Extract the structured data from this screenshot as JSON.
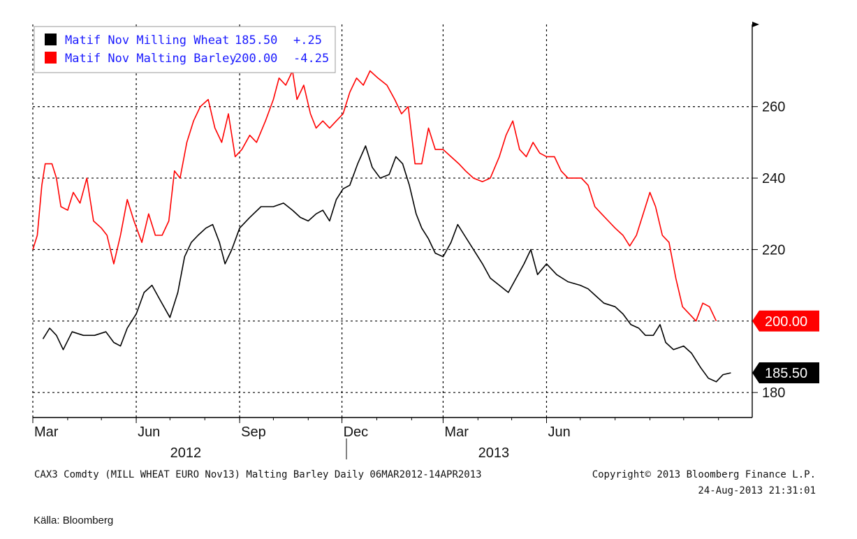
{
  "chart_data": {
    "type": "line",
    "ylim": [
      173,
      283
    ],
    "y_ticks": [
      180,
      200,
      220,
      240,
      260
    ],
    "grid": true,
    "legend": "top-left",
    "x_ticks": [
      {
        "label": "Mar",
        "date": "2012-03-01"
      },
      {
        "label": "Jun",
        "date": "2012-06-01"
      },
      {
        "label": "Sep",
        "date": "2012-09-01"
      },
      {
        "label": "Dec",
        "date": "2012-12-01"
      },
      {
        "label": "Mar",
        "date": "2013-03-01"
      },
      {
        "label": "Jun",
        "date": "2013-06-01"
      }
    ],
    "years": [
      {
        "label": "2012",
        "date": "2012-07-15"
      },
      {
        "label": "2013",
        "date": "2013-04-15"
      }
    ],
    "series": [
      {
        "name": "Matif Nov Milling Wheat",
        "last": "185.50",
        "change": "+.25",
        "color": "#000000",
        "points": [
          [
            "2012-03-10",
            195
          ],
          [
            "2012-03-16",
            198
          ],
          [
            "2012-03-22",
            196
          ],
          [
            "2012-03-28",
            192
          ],
          [
            "2012-04-05",
            197
          ],
          [
            "2012-04-15",
            196
          ],
          [
            "2012-04-25",
            196
          ],
          [
            "2012-05-05",
            197
          ],
          [
            "2012-05-12",
            194
          ],
          [
            "2012-05-18",
            193
          ],
          [
            "2012-05-24",
            198
          ],
          [
            "2012-06-01",
            202
          ],
          [
            "2012-06-08",
            208
          ],
          [
            "2012-06-15",
            210
          ],
          [
            "2012-06-22",
            206
          ],
          [
            "2012-07-01",
            201
          ],
          [
            "2012-07-08",
            208
          ],
          [
            "2012-07-14",
            218
          ],
          [
            "2012-07-20",
            222
          ],
          [
            "2012-07-26",
            224
          ],
          [
            "2012-08-02",
            226
          ],
          [
            "2012-08-08",
            227
          ],
          [
            "2012-08-14",
            222
          ],
          [
            "2012-08-19",
            216
          ],
          [
            "2012-08-25",
            220
          ],
          [
            "2012-09-01",
            226
          ],
          [
            "2012-09-10",
            229
          ],
          [
            "2012-09-20",
            232
          ],
          [
            "2012-10-01",
            232
          ],
          [
            "2012-10-10",
            233
          ],
          [
            "2012-10-18",
            231
          ],
          [
            "2012-10-25",
            229
          ],
          [
            "2012-11-01",
            228
          ],
          [
            "2012-11-08",
            230
          ],
          [
            "2012-11-14",
            231
          ],
          [
            "2012-11-20",
            228
          ],
          [
            "2012-11-26",
            234
          ],
          [
            "2012-12-02",
            237
          ],
          [
            "2012-12-08",
            238
          ],
          [
            "2012-12-15",
            244
          ],
          [
            "2012-12-22",
            249
          ],
          [
            "2012-12-28",
            243
          ],
          [
            "2013-01-04",
            240
          ],
          [
            "2013-01-12",
            241
          ],
          [
            "2013-01-18",
            246
          ],
          [
            "2013-01-24",
            244
          ],
          [
            "2013-01-30",
            238
          ],
          [
            "2013-02-05",
            230
          ],
          [
            "2013-02-10",
            226
          ],
          [
            "2013-02-16",
            223
          ],
          [
            "2013-02-22",
            219
          ],
          [
            "2013-03-01",
            218
          ],
          [
            "2013-03-08",
            222
          ],
          [
            "2013-03-14",
            227
          ],
          [
            "2013-03-20",
            224
          ],
          [
            "2013-03-28",
            220
          ],
          [
            "2013-04-05",
            216
          ],
          [
            "2013-04-12",
            212
          ],
          [
            "2013-04-20",
            210
          ],
          [
            "2013-04-28",
            208
          ],
          [
            "2013-05-05",
            212
          ],
          [
            "2013-05-12",
            216
          ],
          [
            "2013-05-18",
            220
          ],
          [
            "2013-05-24",
            213
          ],
          [
            "2013-06-01",
            216
          ],
          [
            "2013-06-10",
            213
          ],
          [
            "2013-06-20",
            211
          ],
          [
            "2013-07-01",
            210
          ],
          [
            "2013-07-08",
            209
          ],
          [
            "2013-07-15",
            207
          ],
          [
            "2013-07-22",
            205
          ],
          [
            "2013-08-01",
            204
          ],
          [
            "2013-08-08",
            202
          ],
          [
            "2013-08-15",
            199
          ],
          [
            "2013-08-22",
            198
          ],
          [
            "2013-08-28",
            196
          ],
          [
            "2013-09-04",
            196
          ],
          [
            "2013-09-10",
            199
          ],
          [
            "2013-09-15",
            194
          ],
          [
            "2013-09-22",
            192
          ],
          [
            "2013-10-01",
            193
          ],
          [
            "2013-10-08",
            191
          ],
          [
            "2013-10-16",
            187
          ],
          [
            "2013-10-23",
            184
          ],
          [
            "2013-10-30",
            183
          ],
          [
            "2013-11-05",
            185
          ],
          [
            "2013-11-12",
            185.5
          ]
        ]
      },
      {
        "name": "Matif Nov Malting Barley",
        "last": "200.00",
        "change": "-4.25",
        "color": "#ff0000",
        "points": [
          [
            "2012-03-01",
            220
          ],
          [
            "2012-03-05",
            224
          ],
          [
            "2012-03-09",
            238
          ],
          [
            "2012-03-12",
            244
          ],
          [
            "2012-03-18",
            244
          ],
          [
            "2012-03-22",
            240
          ],
          [
            "2012-03-26",
            232
          ],
          [
            "2012-04-01",
            231
          ],
          [
            "2012-04-06",
            236
          ],
          [
            "2012-04-12",
            233
          ],
          [
            "2012-04-18",
            240
          ],
          [
            "2012-04-24",
            228
          ],
          [
            "2012-05-01",
            226
          ],
          [
            "2012-05-06",
            224
          ],
          [
            "2012-05-12",
            216
          ],
          [
            "2012-05-18",
            224
          ],
          [
            "2012-05-24",
            234
          ],
          [
            "2012-05-30",
            228
          ],
          [
            "2012-06-06",
            222
          ],
          [
            "2012-06-12",
            230
          ],
          [
            "2012-06-18",
            224
          ],
          [
            "2012-06-24",
            224
          ],
          [
            "2012-06-30",
            228
          ],
          [
            "2012-07-05",
            242
          ],
          [
            "2012-07-10",
            240
          ],
          [
            "2012-07-16",
            250
          ],
          [
            "2012-07-22",
            256
          ],
          [
            "2012-07-28",
            260
          ],
          [
            "2012-08-04",
            262
          ],
          [
            "2012-08-10",
            254
          ],
          [
            "2012-08-16",
            250
          ],
          [
            "2012-08-22",
            258
          ],
          [
            "2012-08-28",
            246
          ],
          [
            "2012-09-03",
            248
          ],
          [
            "2012-09-10",
            252
          ],
          [
            "2012-09-16",
            250
          ],
          [
            "2012-09-24",
            256
          ],
          [
            "2012-10-01",
            262
          ],
          [
            "2012-10-06",
            268
          ],
          [
            "2012-10-12",
            266
          ],
          [
            "2012-10-18",
            270
          ],
          [
            "2012-10-22",
            262
          ],
          [
            "2012-10-28",
            266
          ],
          [
            "2012-11-03",
            258
          ],
          [
            "2012-11-08",
            254
          ],
          [
            "2012-11-14",
            256
          ],
          [
            "2012-11-20",
            254
          ],
          [
            "2012-11-26",
            256
          ],
          [
            "2012-12-02",
            258
          ],
          [
            "2012-12-08",
            264
          ],
          [
            "2012-12-14",
            268
          ],
          [
            "2012-12-20",
            266
          ],
          [
            "2012-12-26",
            270
          ],
          [
            "2013-01-02",
            268
          ],
          [
            "2013-01-10",
            266
          ],
          [
            "2013-01-17",
            262
          ],
          [
            "2013-01-23",
            258
          ],
          [
            "2013-01-29",
            260
          ],
          [
            "2013-02-04",
            244
          ],
          [
            "2013-02-10",
            244
          ],
          [
            "2013-02-16",
            254
          ],
          [
            "2013-02-22",
            248
          ],
          [
            "2013-03-01",
            248
          ],
          [
            "2013-03-08",
            246
          ],
          [
            "2013-03-15",
            244
          ],
          [
            "2013-03-21",
            242
          ],
          [
            "2013-03-28",
            240
          ],
          [
            "2013-04-05",
            239
          ],
          [
            "2013-04-12",
            240
          ],
          [
            "2013-04-20",
            246
          ],
          [
            "2013-04-26",
            252
          ],
          [
            "2013-05-02",
            256
          ],
          [
            "2013-05-08",
            248
          ],
          [
            "2013-05-14",
            246
          ],
          [
            "2013-05-20",
            250
          ],
          [
            "2013-05-26",
            247
          ],
          [
            "2013-06-01",
            246
          ],
          [
            "2013-06-08",
            246
          ],
          [
            "2013-06-14",
            242
          ],
          [
            "2013-06-20",
            240
          ],
          [
            "2013-06-26",
            240
          ],
          [
            "2013-07-02",
            240
          ],
          [
            "2013-07-08",
            238
          ],
          [
            "2013-07-14",
            232
          ],
          [
            "2013-07-20",
            230
          ],
          [
            "2013-07-26",
            228
          ],
          [
            "2013-08-01",
            226
          ],
          [
            "2013-08-08",
            224
          ],
          [
            "2013-08-14",
            221
          ],
          [
            "2013-08-20",
            224
          ],
          [
            "2013-08-26",
            230
          ],
          [
            "2013-09-01",
            236
          ],
          [
            "2013-09-06",
            232
          ],
          [
            "2013-09-12",
            224
          ],
          [
            "2013-09-18",
            222
          ],
          [
            "2013-09-24",
            212
          ],
          [
            "2013-09-30",
            204
          ],
          [
            "2013-10-06",
            202
          ],
          [
            "2013-10-12",
            200
          ],
          [
            "2013-10-18",
            205
          ],
          [
            "2013-10-24",
            204
          ],
          [
            "2013-10-30",
            200
          ]
        ]
      }
    ],
    "footer_left": "CAX3 Comdty (MILL WHEAT EURO  Nov13) Malting Barley  Daily 06MAR2012-14APR2013",
    "footer_right_1": "Copyright© 2013 Bloomberg Finance L.P.",
    "footer_right_2": "24-Aug-2013 21:31:01"
  },
  "source": "Källa: Bloomberg"
}
